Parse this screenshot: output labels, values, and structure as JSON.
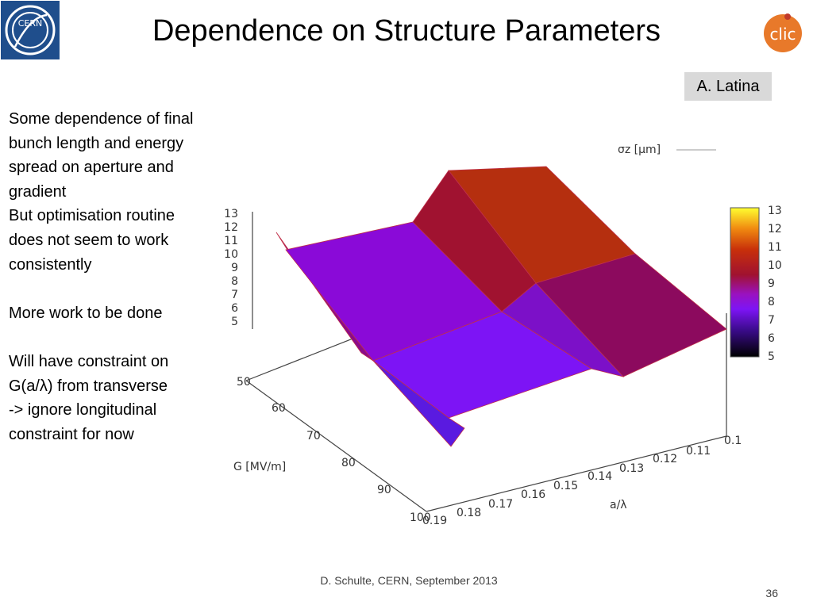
{
  "slide": {
    "title": "Dependence on Structure Parameters",
    "author": "A. Latina",
    "footer": "D. Schulte, CERN, September 2013",
    "page_number": "36",
    "cern_logo_text": "CERN",
    "clic_logo_text": "clic"
  },
  "body": {
    "paragraphs": [
      [
        "Some dependence of final",
        "bunch length and energy",
        "spread on aperture and",
        "gradient",
        "But optimisation routine",
        "does not seem to work",
        "consistently"
      ],
      [
        "More work to be done"
      ],
      [
        "Will have constraint on",
        "G(a/λ) from transverse",
        "-> ignore longitudinal",
        "constraint for now"
      ]
    ]
  },
  "colors": {
    "cern_blue": "#1f4e8c",
    "clic_orange": "#e8792a",
    "surface_high": "#b52f0f",
    "surface_red": "#a01230",
    "surface_mid": "#8c0a5e",
    "surface_purple": "#8a0ad8",
    "surface_violet": "#7d14f5"
  },
  "chart_data": {
    "type": "surface",
    "legend_label": "σz [μm]",
    "xlabel": "a/λ",
    "ylabel": "G [MV/m]",
    "x_ticks": [
      "0.1",
      "0.11",
      "0.12",
      "0.13",
      "0.14",
      "0.15",
      "0.16",
      "0.17",
      "0.18",
      "0.19"
    ],
    "y_ticks": [
      "50",
      "60",
      "70",
      "80",
      "90",
      "100"
    ],
    "z_ticks": [
      "5",
      "6",
      "7",
      "8",
      "9",
      "10",
      "11",
      "12",
      "13"
    ],
    "colorbar_ticks": [
      "5",
      "6",
      "7",
      "8",
      "9",
      "10",
      "11",
      "12",
      "13"
    ],
    "zlim": [
      5,
      13
    ],
    "surface": {
      "x": [
        0.1,
        0.14,
        0.19
      ],
      "y": [
        50,
        75,
        100
      ],
      "z": [
        [
          8.5,
          12.8,
          13.0
        ],
        [
          6.0,
          8.5,
          10.0
        ],
        [
          5.0,
          7.0,
          8.5
        ]
      ]
    }
  }
}
